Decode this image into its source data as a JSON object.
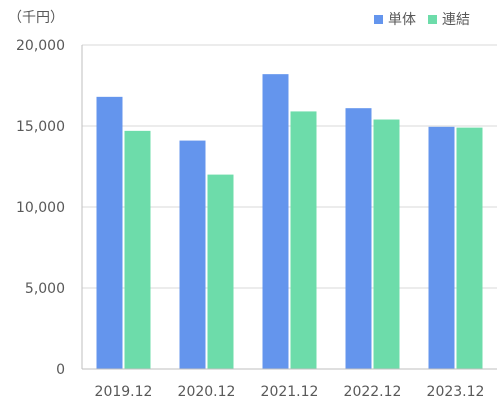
{
  "chart_data": {
    "type": "bar",
    "unit_label": "（千円）",
    "categories": [
      "2019.12",
      "2020.12",
      "2021.12",
      "2022.12",
      "2023.12"
    ],
    "series": [
      {
        "name": "単体",
        "color": "#6495ed",
        "values": [
          16800,
          14100,
          18200,
          16100,
          14950
        ]
      },
      {
        "name": "連結",
        "color": "#6ddcaa",
        "values": [
          14700,
          12000,
          15900,
          15400,
          14900
        ]
      }
    ],
    "ylim": [
      0,
      20000
    ],
    "yticks": [
      0,
      5000,
      10000,
      15000,
      20000
    ],
    "ytick_labels": [
      "0",
      "5,000",
      "10,000",
      "15,000",
      "20,000"
    ],
    "grid": true,
    "legend_position": "top-right"
  }
}
